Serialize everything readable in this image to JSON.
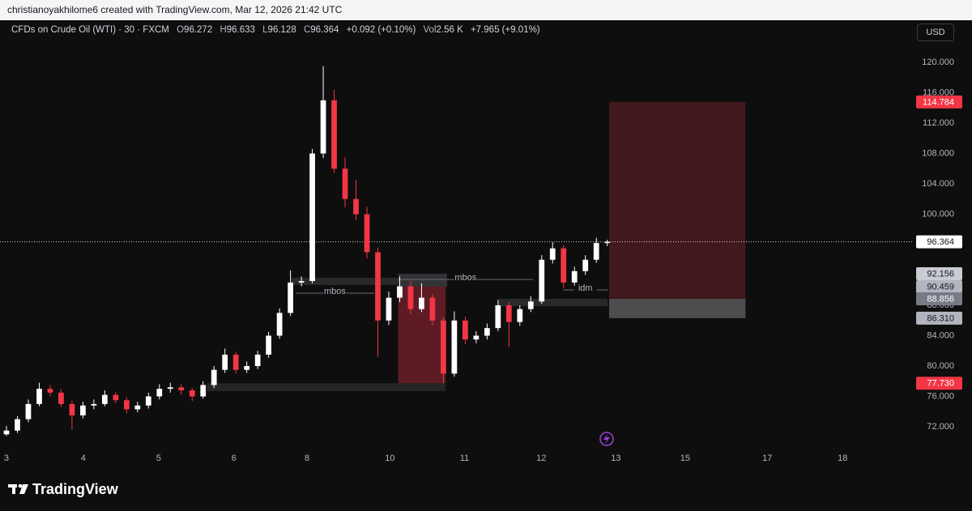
{
  "header": "christianoyakhilome6 created with TradingView.com, Mar 12, 2026 21:42 UTC",
  "footer_brand": "TradingView",
  "currency_button": "USD",
  "chart_data": {
    "type": "candlestick",
    "title": "CFDs on Crude Oil (WTI) · 30 · FXCM",
    "legend": {
      "open_label": "O",
      "open": 96.272,
      "high_label": "H",
      "high": 96.633,
      "low_label": "L",
      "low": 96.128,
      "close_label": "C",
      "close": 96.364,
      "change": "+0.092 (+0.10%)",
      "volume_label": "Vol",
      "volume": "2.56 K",
      "change_total": "+7.965 (+9.01%)"
    },
    "up_color": "#ffffff",
    "down_color": "#f23645",
    "x": [
      0,
      0.145,
      0.29,
      0.435,
      0.58,
      0.725,
      0.87,
      1.015,
      1.16,
      1.305,
      1.45,
      1.595,
      1.74,
      1.885,
      2.03,
      2.175,
      2.32,
      2.465,
      2.61,
      2.755,
      2.9,
      3.045,
      3.19,
      3.335,
      3.48,
      3.625,
      3.77,
      3.915,
      4.06,
      4.205,
      4.35,
      4.495,
      4.64,
      4.785,
      4.93,
      5.075,
      5.22,
      5.365,
      5.51,
      5.655,
      5.8,
      5.945,
      6.09,
      6.235,
      6.38,
      6.525,
      6.67,
      6.815,
      6.96,
      7.105,
      7.25,
      7.395,
      7.54,
      7.685,
      7.83,
      7.975
    ],
    "open": [
      71,
      71.5,
      73,
      75,
      77,
      76.5,
      75,
      73.5,
      74.8,
      75,
      76.2,
      75.5,
      74.3,
      74.8,
      76,
      77,
      77.2,
      76.8,
      76,
      77.5,
      79.5,
      81.5,
      79.5,
      80,
      81.5,
      84,
      87,
      91,
      91.2,
      108,
      115,
      106,
      102,
      100,
      95,
      86,
      89,
      90.5,
      87.5,
      89,
      86,
      79,
      86,
      83.5,
      84,
      85,
      88,
      85.8,
      87.5,
      88.5,
      94,
      95.5,
      91,
      92.5,
      94,
      96.2
    ],
    "high": [
      72.1,
      73.4,
      75.6,
      77.8,
      77.5,
      77,
      75.4,
      75.3,
      75.6,
      76.8,
      76.6,
      75.9,
      75.3,
      76.5,
      77.6,
      77.8,
      77.6,
      77.1,
      78,
      80,
      82.3,
      81.9,
      80.6,
      82,
      84.5,
      87.6,
      92.6,
      91.8,
      108.6,
      119.5,
      116.4,
      107.5,
      104.5,
      101,
      95.6,
      89.8,
      91.8,
      91.2,
      90.9,
      89.5,
      86.4,
      87.2,
      86.5,
      84.6,
      85.6,
      88.7,
      88.4,
      88,
      89.2,
      94.6,
      96.3,
      95.9,
      93.1,
      94.6,
      96.9,
      96.633
    ],
    "low": [
      70.8,
      71.2,
      72.6,
      74.7,
      76,
      74.6,
      71.6,
      73.1,
      74.3,
      74.7,
      75.1,
      73.8,
      73.9,
      74.4,
      75.6,
      76.5,
      76.2,
      75.4,
      75.7,
      77.1,
      79.1,
      79,
      79.1,
      79.6,
      81.1,
      83.6,
      86.6,
      90.5,
      90.9,
      107.4,
      105.4,
      100.9,
      99.2,
      94.2,
      81.2,
      85.4,
      88.4,
      86.8,
      87.1,
      85.4,
      77.73,
      78.6,
      82.9,
      83,
      83.5,
      84.6,
      82.5,
      85.3,
      87.1,
      88.2,
      93.5,
      90.3,
      90.6,
      92,
      93.6,
      95.8
    ],
    "close": [
      71.5,
      73,
      75,
      77,
      76.5,
      75,
      73.5,
      74.8,
      75,
      76.2,
      75.5,
      74.3,
      74.8,
      76,
      77,
      77.2,
      76.8,
      76,
      77.5,
      79.5,
      81.5,
      79.5,
      80,
      81.5,
      84,
      87,
      91,
      91.2,
      108,
      115,
      106,
      102,
      100,
      95,
      86,
      89,
      90.5,
      87.5,
      89,
      86,
      79,
      86,
      83.5,
      84,
      85,
      88,
      85.8,
      87.5,
      88.5,
      94,
      95.5,
      91,
      92.5,
      94,
      96.2,
      96.364
    ],
    "xlim": [
      -0.086,
      12.043
    ],
    "xticks": [
      {
        "value": 0,
        "label": "3"
      },
      {
        "value": 1.02,
        "label": "4"
      },
      {
        "value": 2.02,
        "label": "5"
      },
      {
        "value": 3.02,
        "label": "6"
      },
      {
        "value": 3.99,
        "label": "8"
      },
      {
        "value": 5.09,
        "label": "10"
      },
      {
        "value": 6.08,
        "label": "11"
      },
      {
        "value": 7.1,
        "label": "12"
      },
      {
        "value": 8.09,
        "label": "13"
      },
      {
        "value": 9.01,
        "label": "15"
      },
      {
        "value": 10.1,
        "label": "17"
      },
      {
        "value": 11.1,
        "label": "18"
      }
    ],
    "ylim": [
      69.76,
      125.55
    ],
    "yticks": [
      {
        "value": 72,
        "label": "72.000"
      },
      {
        "value": 76,
        "label": "76.000"
      },
      {
        "value": 80,
        "label": "80.000"
      },
      {
        "value": 84,
        "label": "84.000"
      },
      {
        "value": 88,
        "label": "88.000"
      },
      {
        "value": 100,
        "label": "100.000"
      },
      {
        "value": 104,
        "label": "104.000"
      },
      {
        "value": 108,
        "label": "108.000"
      },
      {
        "value": 112,
        "label": "112.000"
      },
      {
        "value": 116,
        "label": "116.000"
      },
      {
        "value": 120,
        "label": "120.000"
      }
    ],
    "last_price": 96.364,
    "price_labels": [
      {
        "value": 114.784,
        "color": "#f23645",
        "text_color": "#ffffff"
      },
      {
        "value": 96.364,
        "color": "#ffffff",
        "text_color": "#131722"
      },
      {
        "value": 92.156,
        "color": "#c9cbd2",
        "text_color": "#131722"
      },
      {
        "value": 90.459,
        "color": "#b2b5be",
        "text_color": "#131722"
      },
      {
        "value": 88.856,
        "color": "#787b86",
        "text_color": "#ffffff"
      },
      {
        "value": 86.31,
        "label": "86.310",
        "color": "#b2b5be",
        "text_color": "#131722"
      },
      {
        "value": 77.73,
        "label": "77.730",
        "color": "#f23645",
        "text_color": "#ffffff"
      }
    ],
    "position": {
      "x": [
        8.0,
        9.81
      ],
      "entry": 88.856,
      "stop": 114.784,
      "target": 86.31,
      "loss_color": "#4a1b20",
      "profit_color": "#4d4d4f"
    },
    "zones": [
      {
        "x": [
          3.78,
          5.2
        ],
        "y": [
          90.67,
          91.63
        ],
        "color": "#2e2e30"
      },
      {
        "x": [
          5.2,
          5.85
        ],
        "y": [
          90.459,
          92.156
        ],
        "color": "#3a3a3c"
      },
      {
        "x": [
          5.2,
          5.83
        ],
        "y": [
          77.73,
          90.459
        ],
        "color": "#6b1f28"
      },
      {
        "x": [
          2.66,
          5.83
        ],
        "y": [
          76.7,
          77.73
        ],
        "color": "#2a2a2c"
      },
      {
        "x": [
          6.53,
          7.98
        ],
        "y": [
          87.9,
          88.856
        ],
        "color": "#2e2e30"
      }
    ],
    "annotations": [
      {
        "text": "mbos",
        "x": [
          3.84,
          4.88
        ],
        "y": 89.6
      },
      {
        "text": "mbos",
        "x": [
          5.2,
          6.99
        ],
        "y": 91.4
      },
      {
        "text": "idm",
        "x": [
          7.39,
          7.98
        ],
        "y": 90.03
      }
    ]
  }
}
